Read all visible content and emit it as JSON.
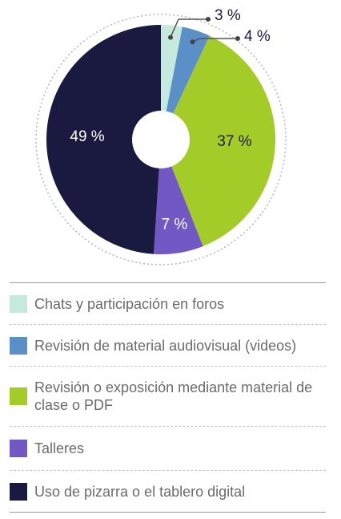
{
  "chart_data": {
    "type": "pie",
    "slices": [
      {
        "label": "Chats y participación en foros",
        "value": 3,
        "display": "3 %",
        "color": "#c5e9dd",
        "label_color": "#1a1a40"
      },
      {
        "label": "Revisión de material audiovisual (videos)",
        "value": 4,
        "display": "4 %",
        "color": "#5b8fc8",
        "label_color": "#1a1a40"
      },
      {
        "label": "Revisión o exposición mediante material de clase o PDF",
        "value": 37,
        "display": "37 %",
        "color": "#a3cc29",
        "label_color": "#1a1a40"
      },
      {
        "label": "Talleres",
        "value": 7,
        "display": "7 %",
        "color": "#7158c5",
        "label_color": "#ffffff"
      },
      {
        "label": "Uso de pizarra o el tablero digital",
        "value": 49,
        "display": "49 %",
        "color": "#1a1a40",
        "label_color": "#ffffff"
      }
    ],
    "donut_hole": true,
    "legend_position": "bottom"
  },
  "legend": {
    "items": [
      {
        "label": "Chats y participación en foros",
        "color": "#c5e9dd"
      },
      {
        "label": "Revisión de material audiovisual (videos)",
        "color": "#5b8fc8"
      },
      {
        "label": "Revisión o exposición mediante material de clase o PDF",
        "color": "#a3cc29"
      },
      {
        "label": "Talleres",
        "color": "#7158c5"
      },
      {
        "label": "Uso de pizarra o el tablero digital",
        "color": "#1a1a40"
      }
    ]
  }
}
